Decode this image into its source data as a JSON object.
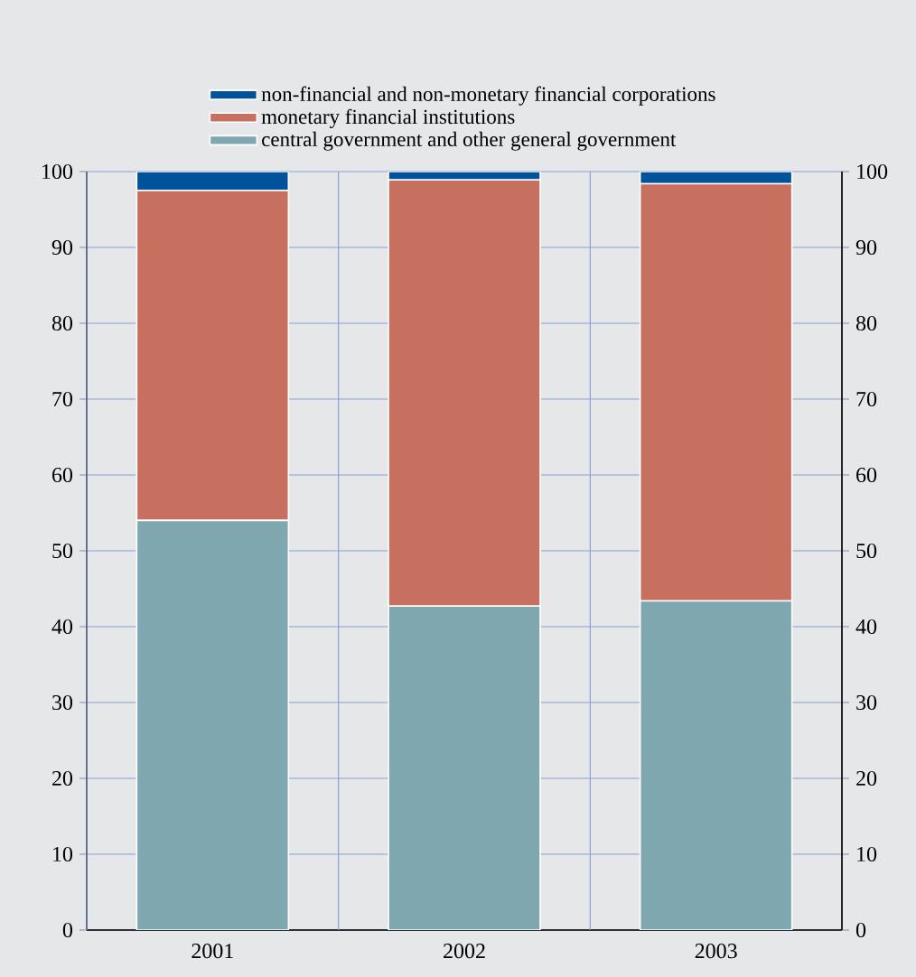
{
  "chart_data": {
    "type": "bar",
    "stacked": true,
    "categories": [
      "2001",
      "2002",
      "2003"
    ],
    "series": [
      {
        "name": "central government and other general government",
        "color": "#7fa7b0",
        "values": [
          54,
          42.7,
          43.4
        ]
      },
      {
        "name": "monetary financial institutions",
        "color": "#c87060",
        "values": [
          43.5,
          56.2,
          55
        ]
      },
      {
        "name": "non-financial and non-monetary financial corporations",
        "color": "#00529b",
        "values": [
          2.5,
          1.1,
          1.6
        ]
      }
    ],
    "ylim": [
      0,
      100
    ],
    "yticks": [
      0,
      10,
      20,
      30,
      40,
      50,
      60,
      70,
      80,
      90,
      100
    ],
    "y2lim": [
      0,
      100
    ],
    "y2ticks": [
      0,
      10,
      20,
      30,
      40,
      50,
      60,
      70,
      80,
      90,
      100
    ],
    "grid": true,
    "legend": "top"
  }
}
